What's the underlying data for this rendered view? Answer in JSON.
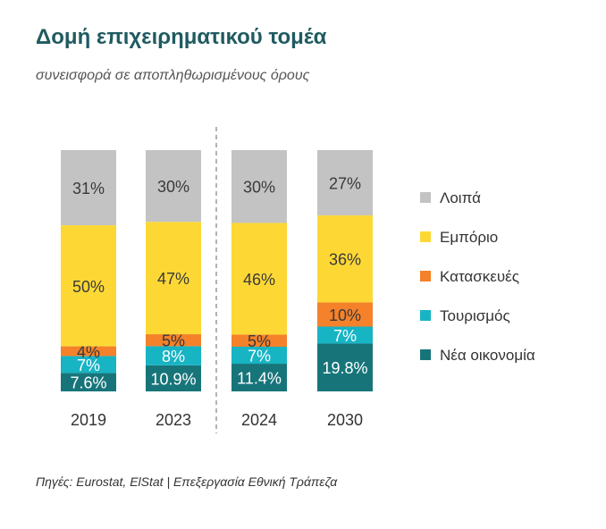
{
  "header": {
    "title": "Δομή επιχειρηματικού τομέα",
    "subtitle": "συνεισφορά σε αποπληθωρισμένους όρους"
  },
  "footer": {
    "source": "Πηγές: Eurostat, ElStat | Επεξεργασία Εθνική Τράπεζα"
  },
  "chart_data": {
    "type": "bar",
    "stacked": true,
    "categories": [
      "2019",
      "2023",
      "2024",
      "2030"
    ],
    "divider_after_category_index": 1,
    "series": [
      {
        "name": "Νέα οικονομία",
        "color": "#17757a",
        "values": [
          7.6,
          10.9,
          11.4,
          19.8
        ],
        "labels": [
          "7.6%",
          "10.9%",
          "11.4%",
          "19.8%"
        ]
      },
      {
        "name": "Τουρισμός",
        "color": "#17b4c4",
        "values": [
          7,
          8,
          7,
          7
        ],
        "labels": [
          "7%",
          "8%",
          "7%",
          "7%"
        ]
      },
      {
        "name": "Κατασκευές",
        "color": "#f5812a",
        "values": [
          4,
          5,
          5,
          10
        ],
        "labels": [
          "4%",
          "5%",
          "5%",
          "10%"
        ]
      },
      {
        "name": "Εμπόριο",
        "color": "#fdd835",
        "values": [
          50,
          47,
          46,
          36
        ],
        "labels": [
          "50%",
          "47%",
          "46%",
          "36%"
        ]
      },
      {
        "name": "Λοιπά",
        "color": "#c3c3c3",
        "values": [
          31,
          30,
          30,
          27
        ],
        "labels": [
          "31%",
          "30%",
          "30%",
          "27%"
        ]
      }
    ],
    "legend_order": [
      "Λοιπά",
      "Εμπόριο",
      "Κατασκευές",
      "Τουρισμός",
      "Νέα οικονομία"
    ],
    "legend_position": "right",
    "grid": false
  }
}
